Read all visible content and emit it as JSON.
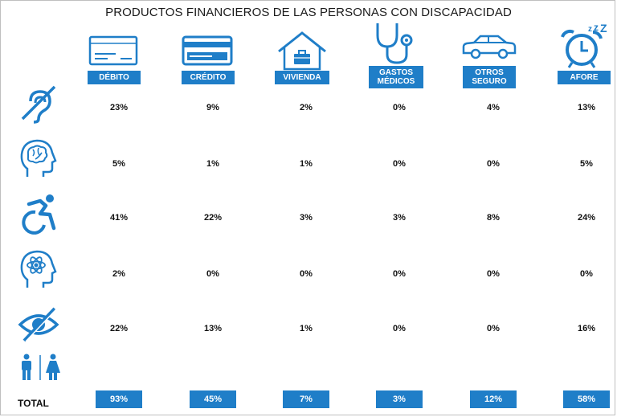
{
  "chart_data": {
    "type": "table",
    "title": "PRODUCTOS FINANCIEROS DE LAS PERSONAS CON DISCAPACIDAD",
    "columns": [
      "DÉBITO",
      "CRÉDITO",
      "VIVIENDA",
      "GASTOS MÉDICOS",
      "OTROS SEGURO",
      "AFORE"
    ],
    "column_icons": [
      "debit-card-icon",
      "credit-card-icon",
      "house-icon",
      "stethoscope-icon",
      "car-icon",
      "alarm-clock-icon"
    ],
    "rows": [
      {
        "icon": "hearing-disability-icon",
        "values": [
          "23%",
          "9%",
          "2%",
          "0%",
          "4%",
          "13%"
        ]
      },
      {
        "icon": "brain-head-icon",
        "values": [
          "5%",
          "1%",
          "1%",
          "0%",
          "0%",
          "5%"
        ]
      },
      {
        "icon": "wheelchair-icon",
        "values": [
          "41%",
          "22%",
          "3%",
          "3%",
          "8%",
          "24%"
        ]
      },
      {
        "icon": "atom-head-icon",
        "values": [
          "2%",
          "0%",
          "0%",
          "0%",
          "0%",
          "0%"
        ]
      },
      {
        "icon": "visual-disability-icon",
        "values": [
          "22%",
          "13%",
          "1%",
          "0%",
          "0%",
          "16%"
        ]
      }
    ],
    "people_icon": "restroom-people-icon",
    "total_label": "TOTAL",
    "totals": [
      "93%",
      "45%",
      "7%",
      "3%",
      "12%",
      "58%"
    ]
  },
  "colors": {
    "accent": "#1f7ec8",
    "icon": "#1f7ec8",
    "text": "#111111"
  }
}
